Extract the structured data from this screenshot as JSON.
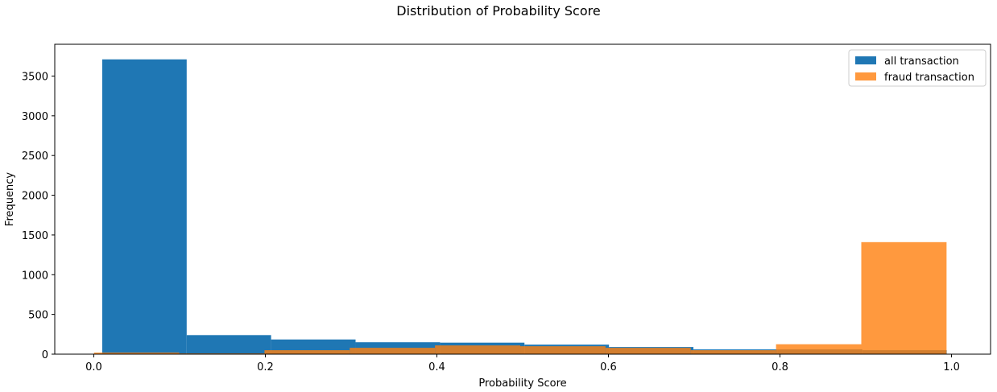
{
  "chart_data": {
    "type": "bar",
    "title": "Distribution of Probability Score",
    "xlabel": "Probability Score",
    "ylabel": "Frequency",
    "xlim": [
      -0.0455,
      1.0455
    ],
    "ylim": [
      0,
      3900
    ],
    "xticks": [
      0.0,
      0.2,
      0.4,
      0.6,
      0.8,
      1.0
    ],
    "xtick_labels": [
      "0.0",
      "0.2",
      "0.4",
      "0.6",
      "0.8",
      "1.0"
    ],
    "yticks": [
      0,
      500,
      1000,
      1500,
      2000,
      2500,
      3000,
      3500
    ],
    "ytick_labels": [
      "0",
      "500",
      "1000",
      "1500",
      "2000",
      "2500",
      "3000",
      "3500"
    ],
    "grid": false,
    "legend_position": "top-right",
    "series": [
      {
        "name": "all transaction",
        "color": "#1f77b4",
        "bin_edges": [
          0.0098,
          0.1083,
          0.2067,
          0.3052,
          0.4037,
          0.5021,
          0.6006,
          0.6991,
          0.7975,
          0.896,
          0.9944
        ],
        "values": [
          3710,
          240,
          185,
          150,
          145,
          120,
          90,
          60,
          60,
          50
        ]
      },
      {
        "name": "fraud transaction",
        "color": "#ff7f0e",
        "bin_edges": [
          0.0002,
          0.0996,
          0.199,
          0.2984,
          0.3978,
          0.4972,
          0.5966,
          0.696,
          0.7954,
          0.8948,
          0.9942
        ],
        "values": [
          20,
          10,
          50,
          80,
          110,
          100,
          80,
          50,
          125,
          1410
        ]
      }
    ]
  }
}
